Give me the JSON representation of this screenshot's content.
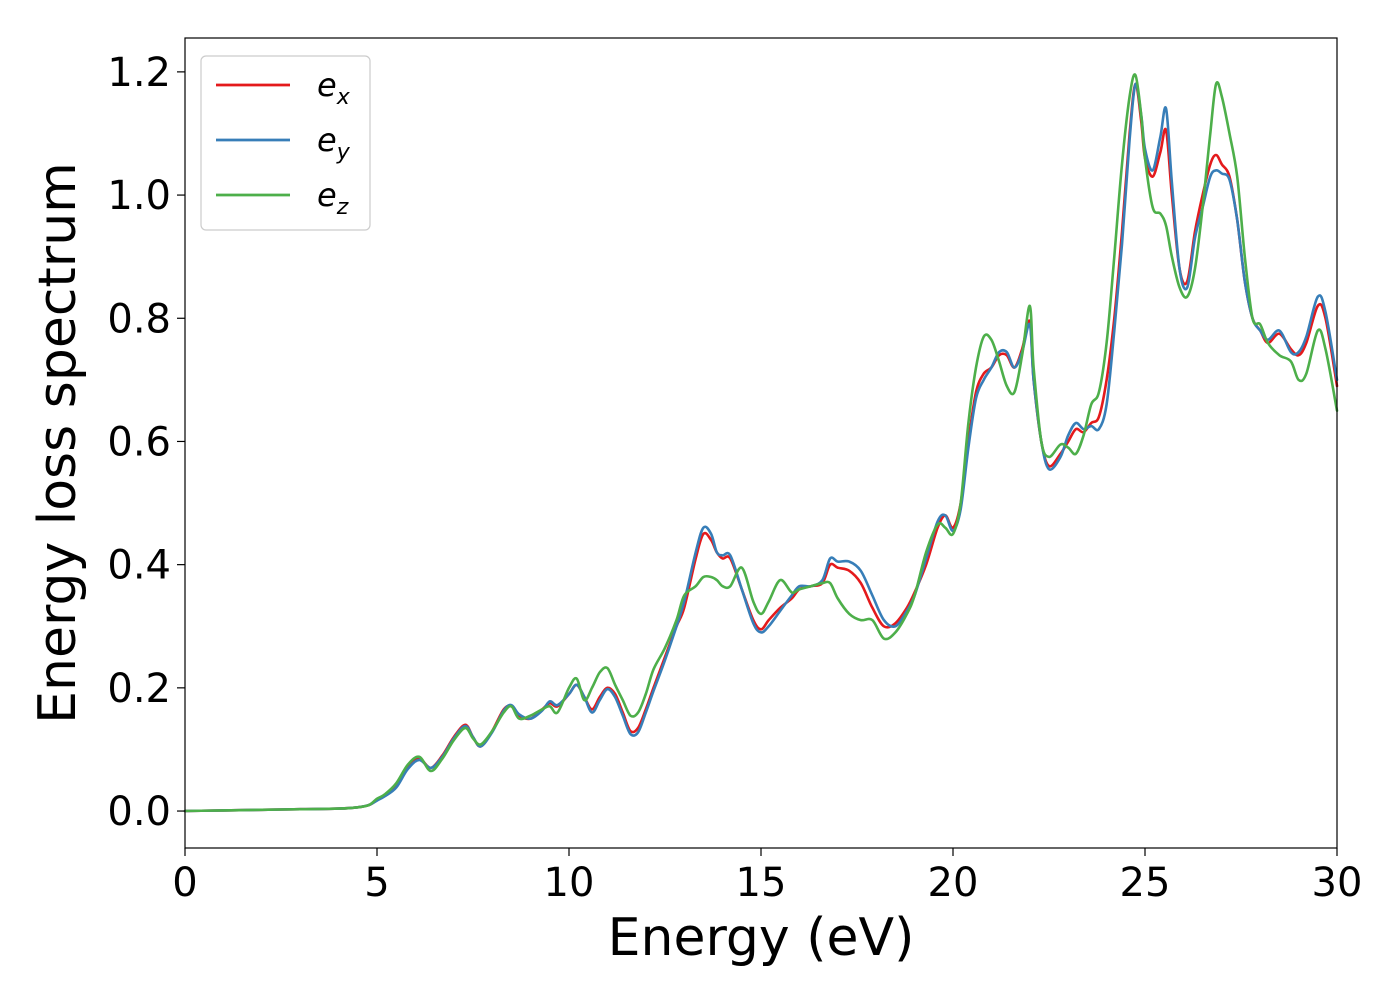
{
  "chart_data": {
    "type": "line",
    "title": "",
    "xlabel": "Energy (eV)",
    "ylabel": "Energy loss spectrum",
    "xlim": [
      0,
      30
    ],
    "ylim": [
      -0.06,
      1.255
    ],
    "xticks": [
      0,
      5,
      10,
      15,
      20,
      25,
      30
    ],
    "xtick_labels": [
      "0",
      "5",
      "10",
      "15",
      "20",
      "25",
      "30"
    ],
    "yticks": [
      0.0,
      0.2,
      0.4,
      0.6,
      0.8,
      1.0,
      1.2
    ],
    "ytick_labels": [
      "0.0",
      "0.2",
      "0.4",
      "0.6",
      "0.8",
      "1.0",
      "1.2"
    ],
    "grid": false,
    "legend_position": "top-left",
    "series": [
      {
        "name": "e_x",
        "label_base": "e",
        "label_sub": "x",
        "color": "#e41a1c",
        "x": [
          0,
          1,
          2,
          3,
          4,
          4.5,
          4.8,
          5.0,
          5.2,
          5.5,
          5.8,
          6.1,
          6.4,
          6.7,
          7.0,
          7.3,
          7.5,
          7.7,
          8.0,
          8.3,
          8.5,
          8.7,
          9.0,
          9.3,
          9.5,
          9.7,
          10.0,
          10.2,
          10.4,
          10.6,
          10.8,
          11.0,
          11.2,
          11.4,
          11.6,
          11.8,
          12.0,
          12.2,
          12.5,
          12.8,
          13.0,
          13.3,
          13.5,
          13.7,
          13.85,
          14.0,
          14.2,
          14.5,
          14.8,
          15.0,
          15.2,
          15.5,
          15.8,
          16.0,
          16.3,
          16.6,
          16.8,
          17.0,
          17.3,
          17.6,
          17.9,
          18.2,
          18.5,
          18.8,
          19.0,
          19.3,
          19.6,
          19.8,
          20.0,
          20.2,
          20.4,
          20.6,
          20.8,
          21.0,
          21.2,
          21.4,
          21.6,
          21.8,
          22.0,
          22.1,
          22.3,
          22.5,
          22.8,
          23.0,
          23.2,
          23.4,
          23.6,
          23.8,
          24.0,
          24.2,
          24.4,
          24.6,
          24.75,
          24.9,
          25.0,
          25.2,
          25.4,
          25.55,
          25.7,
          25.9,
          26.1,
          26.3,
          26.5,
          26.7,
          26.85,
          27.0,
          27.2,
          27.4,
          27.6,
          27.8,
          28.0,
          28.2,
          28.5,
          28.8,
          29.0,
          29.2,
          29.5,
          29.7,
          30.0
        ],
        "y": [
          0.0,
          0.001,
          0.002,
          0.003,
          0.004,
          0.006,
          0.01,
          0.018,
          0.025,
          0.04,
          0.07,
          0.085,
          0.07,
          0.09,
          0.12,
          0.14,
          0.12,
          0.105,
          0.13,
          0.165,
          0.17,
          0.155,
          0.15,
          0.165,
          0.175,
          0.17,
          0.19,
          0.205,
          0.185,
          0.165,
          0.185,
          0.2,
          0.19,
          0.16,
          0.13,
          0.135,
          0.165,
          0.2,
          0.25,
          0.3,
          0.33,
          0.41,
          0.45,
          0.44,
          0.42,
          0.41,
          0.41,
          0.36,
          0.31,
          0.295,
          0.31,
          0.33,
          0.345,
          0.36,
          0.365,
          0.37,
          0.4,
          0.395,
          0.39,
          0.37,
          0.33,
          0.3,
          0.305,
          0.33,
          0.355,
          0.4,
          0.46,
          0.48,
          0.46,
          0.5,
          0.6,
          0.68,
          0.71,
          0.72,
          0.74,
          0.74,
          0.72,
          0.75,
          0.795,
          0.7,
          0.6,
          0.56,
          0.58,
          0.6,
          0.62,
          0.615,
          0.63,
          0.64,
          0.7,
          0.8,
          0.94,
          1.1,
          1.18,
          1.12,
          1.06,
          1.03,
          1.07,
          1.105,
          1.0,
          0.88,
          0.86,
          0.94,
          1.0,
          1.05,
          1.065,
          1.05,
          1.03,
          0.96,
          0.86,
          0.8,
          0.78,
          0.76,
          0.775,
          0.75,
          0.74,
          0.76,
          0.82,
          0.8,
          0.69
        ]
      },
      {
        "name": "e_y",
        "label_base": "e",
        "label_sub": "y",
        "color": "#377eb8",
        "x": [
          0,
          1,
          2,
          3,
          4,
          4.5,
          4.8,
          5.0,
          5.2,
          5.5,
          5.8,
          6.1,
          6.4,
          6.7,
          7.0,
          7.3,
          7.5,
          7.7,
          8.0,
          8.3,
          8.5,
          8.7,
          9.0,
          9.3,
          9.5,
          9.7,
          10.0,
          10.2,
          10.4,
          10.6,
          10.8,
          11.0,
          11.2,
          11.4,
          11.6,
          11.8,
          12.0,
          12.2,
          12.5,
          12.8,
          13.0,
          13.3,
          13.5,
          13.7,
          13.85,
          14.0,
          14.2,
          14.5,
          14.8,
          15.0,
          15.2,
          15.5,
          15.8,
          16.0,
          16.3,
          16.6,
          16.8,
          17.0,
          17.3,
          17.6,
          17.9,
          18.2,
          18.5,
          18.8,
          19.0,
          19.3,
          19.6,
          19.8,
          20.0,
          20.2,
          20.4,
          20.6,
          20.8,
          21.0,
          21.2,
          21.4,
          21.6,
          21.8,
          22.0,
          22.1,
          22.3,
          22.5,
          22.8,
          23.0,
          23.2,
          23.4,
          23.6,
          23.8,
          24.0,
          24.2,
          24.4,
          24.6,
          24.75,
          24.9,
          25.0,
          25.2,
          25.4,
          25.55,
          25.7,
          25.9,
          26.1,
          26.3,
          26.5,
          26.7,
          26.85,
          27.0,
          27.2,
          27.4,
          27.6,
          27.8,
          28.0,
          28.2,
          28.5,
          28.8,
          29.0,
          29.2,
          29.5,
          29.7,
          30.0
        ],
        "y": [
          0.0,
          0.001,
          0.002,
          0.003,
          0.004,
          0.006,
          0.01,
          0.017,
          0.024,
          0.038,
          0.068,
          0.083,
          0.07,
          0.088,
          0.118,
          0.138,
          0.12,
          0.105,
          0.128,
          0.163,
          0.172,
          0.157,
          0.15,
          0.163,
          0.178,
          0.172,
          0.19,
          0.205,
          0.185,
          0.16,
          0.18,
          0.198,
          0.185,
          0.155,
          0.125,
          0.128,
          0.16,
          0.195,
          0.245,
          0.3,
          0.34,
          0.42,
          0.46,
          0.45,
          0.42,
          0.415,
          0.415,
          0.36,
          0.305,
          0.29,
          0.3,
          0.325,
          0.35,
          0.365,
          0.365,
          0.375,
          0.41,
          0.405,
          0.405,
          0.39,
          0.35,
          0.31,
          0.3,
          0.325,
          0.35,
          0.41,
          0.47,
          0.48,
          0.455,
          0.49,
          0.59,
          0.67,
          0.7,
          0.72,
          0.745,
          0.745,
          0.72,
          0.745,
          0.79,
          0.7,
          0.6,
          0.555,
          0.575,
          0.61,
          0.63,
          0.62,
          0.625,
          0.62,
          0.66,
          0.78,
          0.92,
          1.09,
          1.18,
          1.13,
          1.075,
          1.04,
          1.095,
          1.14,
          1.02,
          0.88,
          0.85,
          0.93,
          0.98,
          1.03,
          1.04,
          1.035,
          1.025,
          0.96,
          0.86,
          0.8,
          0.78,
          0.765,
          0.78,
          0.745,
          0.745,
          0.77,
          0.835,
          0.81,
          0.7
        ]
      },
      {
        "name": "e_z",
        "label_base": "e",
        "label_sub": "z",
        "color": "#4daf4a",
        "x": [
          0,
          1,
          2,
          3,
          4,
          4.5,
          4.8,
          5.0,
          5.2,
          5.5,
          5.8,
          6.1,
          6.4,
          6.7,
          7.0,
          7.3,
          7.5,
          7.7,
          8.0,
          8.3,
          8.5,
          8.7,
          9.0,
          9.3,
          9.5,
          9.7,
          10.0,
          10.2,
          10.4,
          10.6,
          10.8,
          11.0,
          11.2,
          11.4,
          11.6,
          11.8,
          12.0,
          12.2,
          12.5,
          12.8,
          13.0,
          13.3,
          13.5,
          13.7,
          13.85,
          14.0,
          14.2,
          14.5,
          14.8,
          15.0,
          15.2,
          15.5,
          15.8,
          16.0,
          16.3,
          16.6,
          16.8,
          17.0,
          17.3,
          17.6,
          17.9,
          18.2,
          18.5,
          18.8,
          19.0,
          19.3,
          19.6,
          19.8,
          20.0,
          20.2,
          20.4,
          20.6,
          20.8,
          21.0,
          21.2,
          21.4,
          21.6,
          21.8,
          22.0,
          22.1,
          22.3,
          22.5,
          22.8,
          23.0,
          23.2,
          23.4,
          23.6,
          23.8,
          24.0,
          24.2,
          24.4,
          24.6,
          24.75,
          24.9,
          25.0,
          25.2,
          25.4,
          25.55,
          25.7,
          25.9,
          26.1,
          26.3,
          26.5,
          26.7,
          26.85,
          27.0,
          27.2,
          27.4,
          27.6,
          27.8,
          28.0,
          28.2,
          28.5,
          28.8,
          29.0,
          29.2,
          29.5,
          29.7,
          30.0
        ],
        "y": [
          0.0,
          0.001,
          0.002,
          0.003,
          0.004,
          0.006,
          0.01,
          0.02,
          0.027,
          0.045,
          0.075,
          0.088,
          0.065,
          0.085,
          0.115,
          0.135,
          0.118,
          0.108,
          0.13,
          0.16,
          0.17,
          0.15,
          0.155,
          0.165,
          0.17,
          0.16,
          0.2,
          0.215,
          0.18,
          0.2,
          0.225,
          0.232,
          0.205,
          0.18,
          0.155,
          0.16,
          0.19,
          0.23,
          0.265,
          0.31,
          0.35,
          0.365,
          0.38,
          0.38,
          0.375,
          0.365,
          0.365,
          0.395,
          0.34,
          0.32,
          0.34,
          0.375,
          0.355,
          0.36,
          0.365,
          0.37,
          0.37,
          0.345,
          0.32,
          0.31,
          0.31,
          0.28,
          0.29,
          0.32,
          0.35,
          0.42,
          0.465,
          0.46,
          0.45,
          0.5,
          0.63,
          0.72,
          0.77,
          0.765,
          0.73,
          0.69,
          0.68,
          0.74,
          0.82,
          0.72,
          0.6,
          0.575,
          0.595,
          0.59,
          0.58,
          0.61,
          0.66,
          0.68,
          0.76,
          0.9,
          1.05,
          1.16,
          1.195,
          1.13,
          1.06,
          0.98,
          0.97,
          0.95,
          0.9,
          0.85,
          0.835,
          0.88,
          0.98,
          1.1,
          1.18,
          1.16,
          1.1,
          1.03,
          0.9,
          0.8,
          0.79,
          0.76,
          0.74,
          0.73,
          0.7,
          0.71,
          0.78,
          0.75,
          0.65
        ]
      }
    ]
  }
}
